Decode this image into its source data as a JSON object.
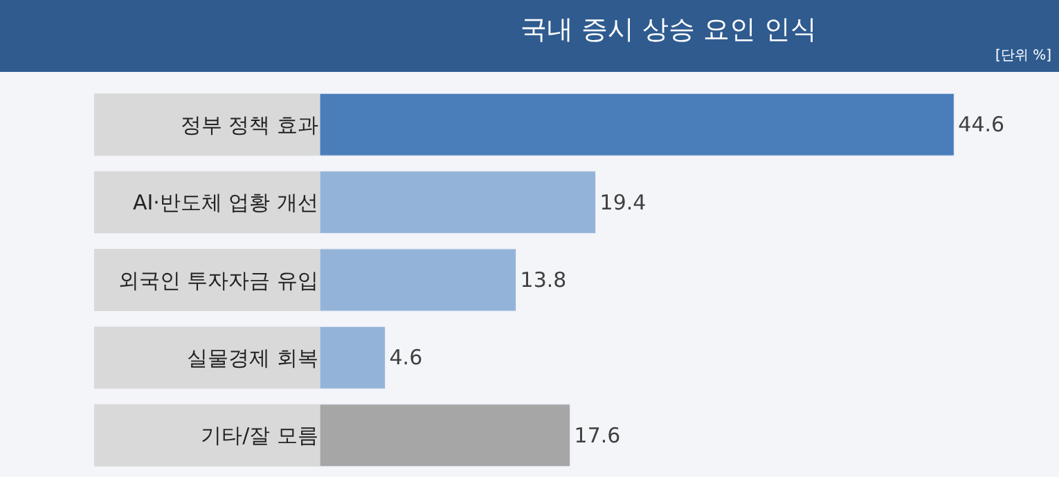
{
  "chart_data": {
    "type": "bar",
    "orientation": "horizontal",
    "title": "국내 증시 상승 요인 인식",
    "subtitle": "[단위 %]",
    "categories": [
      "정부 정책 효과",
      "AI·반도체 업황 개선",
      "외국인 투자자금 유입",
      "실물경제 회복",
      "기타/잘 모름"
    ],
    "values": [
      44.6,
      19.4,
      13.8,
      4.6,
      17.6
    ],
    "colors": [
      "#4a7ebb",
      "#94b3d8",
      "#94b3d8",
      "#94b3d8",
      "#a6a6a6"
    ],
    "data_labels": true
  }
}
